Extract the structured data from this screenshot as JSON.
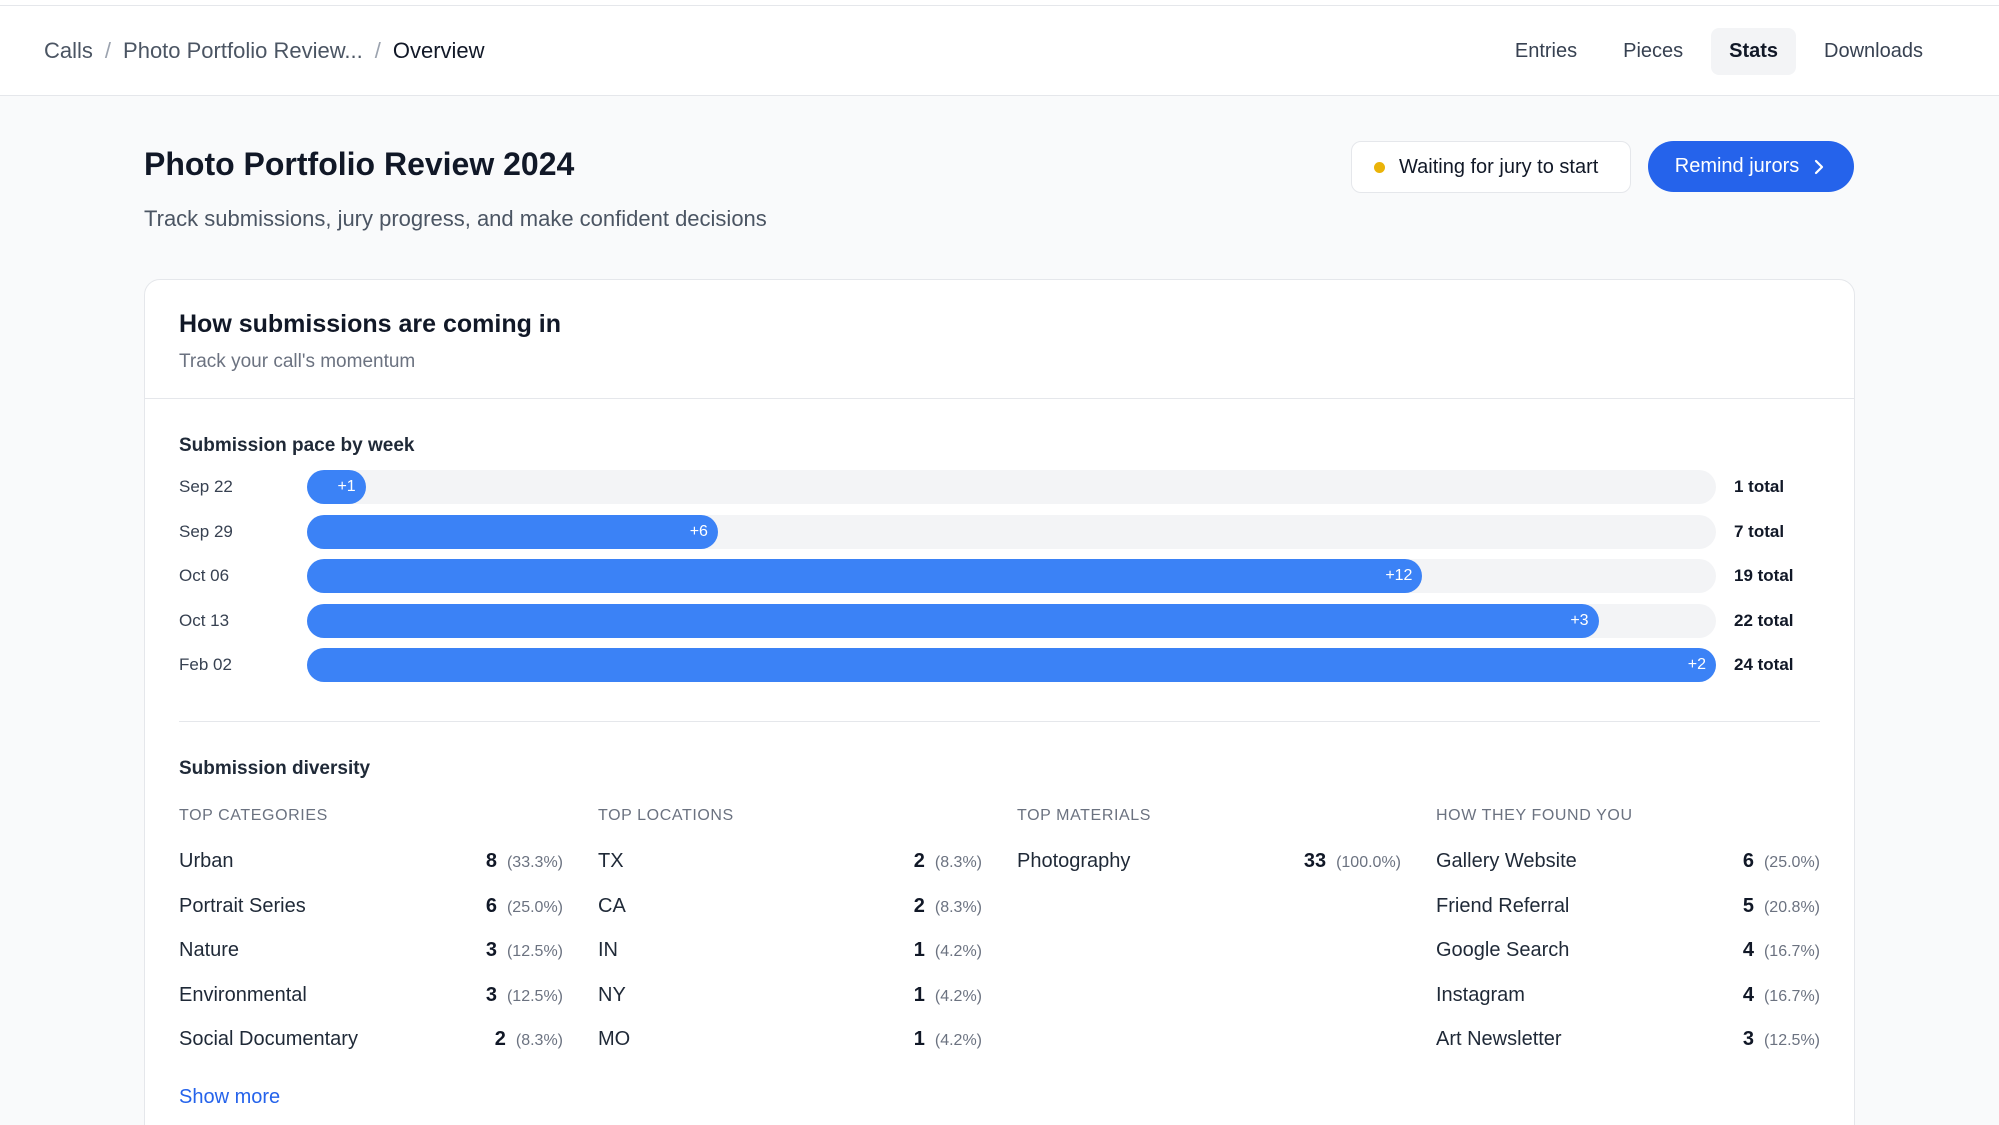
{
  "breadcrumb": {
    "root": "Calls",
    "parent": "Photo Portfolio Review...",
    "current": "Overview"
  },
  "nav": {
    "tabs": [
      "Entries",
      "Pieces",
      "Stats",
      "Downloads"
    ],
    "active": "Stats"
  },
  "page": {
    "title": "Photo Portfolio Review 2024",
    "subtitle": "Track submissions, jury progress, and make confident decisions"
  },
  "status": {
    "label": "Waiting for jury to start",
    "color": "#eab308"
  },
  "actions": {
    "remind_label": "Remind jurors"
  },
  "card": {
    "title": "How submissions are coming in",
    "subtitle": "Track your call's momentum",
    "pace_title": "Submission pace by week",
    "diversity_title": "Submission diversity",
    "show_more": "Show more"
  },
  "chart_data": {
    "type": "bar",
    "title": "Submission pace by week",
    "categories": [
      "Sep 22",
      "Sep 29",
      "Oct 06",
      "Oct 13",
      "Feb 02"
    ],
    "series": [
      {
        "values": [
          1,
          7,
          19,
          22,
          24
        ]
      }
    ],
    "deltas": [
      "+1",
      "+6",
      "+12",
      "+3",
      "+2"
    ],
    "totals": [
      "1 total",
      "7 total",
      "19 total",
      "22 total",
      "24 total"
    ],
    "max": 24,
    "orientation": "horizontal"
  },
  "diversity": {
    "categories": {
      "heading": "Top categories",
      "rows": [
        {
          "name": "Urban",
          "count": "8",
          "pct": "(33.3%)"
        },
        {
          "name": "Portrait Series",
          "count": "6",
          "pct": "(25.0%)"
        },
        {
          "name": "Nature",
          "count": "3",
          "pct": "(12.5%)"
        },
        {
          "name": "Environmental",
          "count": "3",
          "pct": "(12.5%)"
        },
        {
          "name": "Social Documentary",
          "count": "2",
          "pct": "(8.3%)"
        }
      ]
    },
    "locations": {
      "heading": "Top locations",
      "rows": [
        {
          "name": "TX",
          "count": "2",
          "pct": "(8.3%)"
        },
        {
          "name": "CA",
          "count": "2",
          "pct": "(8.3%)"
        },
        {
          "name": "IN",
          "count": "1",
          "pct": "(4.2%)"
        },
        {
          "name": "NY",
          "count": "1",
          "pct": "(4.2%)"
        },
        {
          "name": "MO",
          "count": "1",
          "pct": "(4.2%)"
        }
      ]
    },
    "materials": {
      "heading": "Top materials",
      "rows": [
        {
          "name": "Photography",
          "count": "33",
          "pct": "(100.0%)"
        }
      ]
    },
    "sources": {
      "heading": "How they found you",
      "rows": [
        {
          "name": "Gallery Website",
          "count": "6",
          "pct": "(25.0%)"
        },
        {
          "name": "Friend Referral",
          "count": "5",
          "pct": "(20.8%)"
        },
        {
          "name": "Google Search",
          "count": "4",
          "pct": "(16.7%)"
        },
        {
          "name": "Instagram",
          "count": "4",
          "pct": "(16.7%)"
        },
        {
          "name": "Art Newsletter",
          "count": "3",
          "pct": "(12.5%)"
        }
      ]
    }
  },
  "colors": {
    "accent": "#2563eb",
    "bar": "#3b82f6",
    "track": "#f3f4f6"
  }
}
